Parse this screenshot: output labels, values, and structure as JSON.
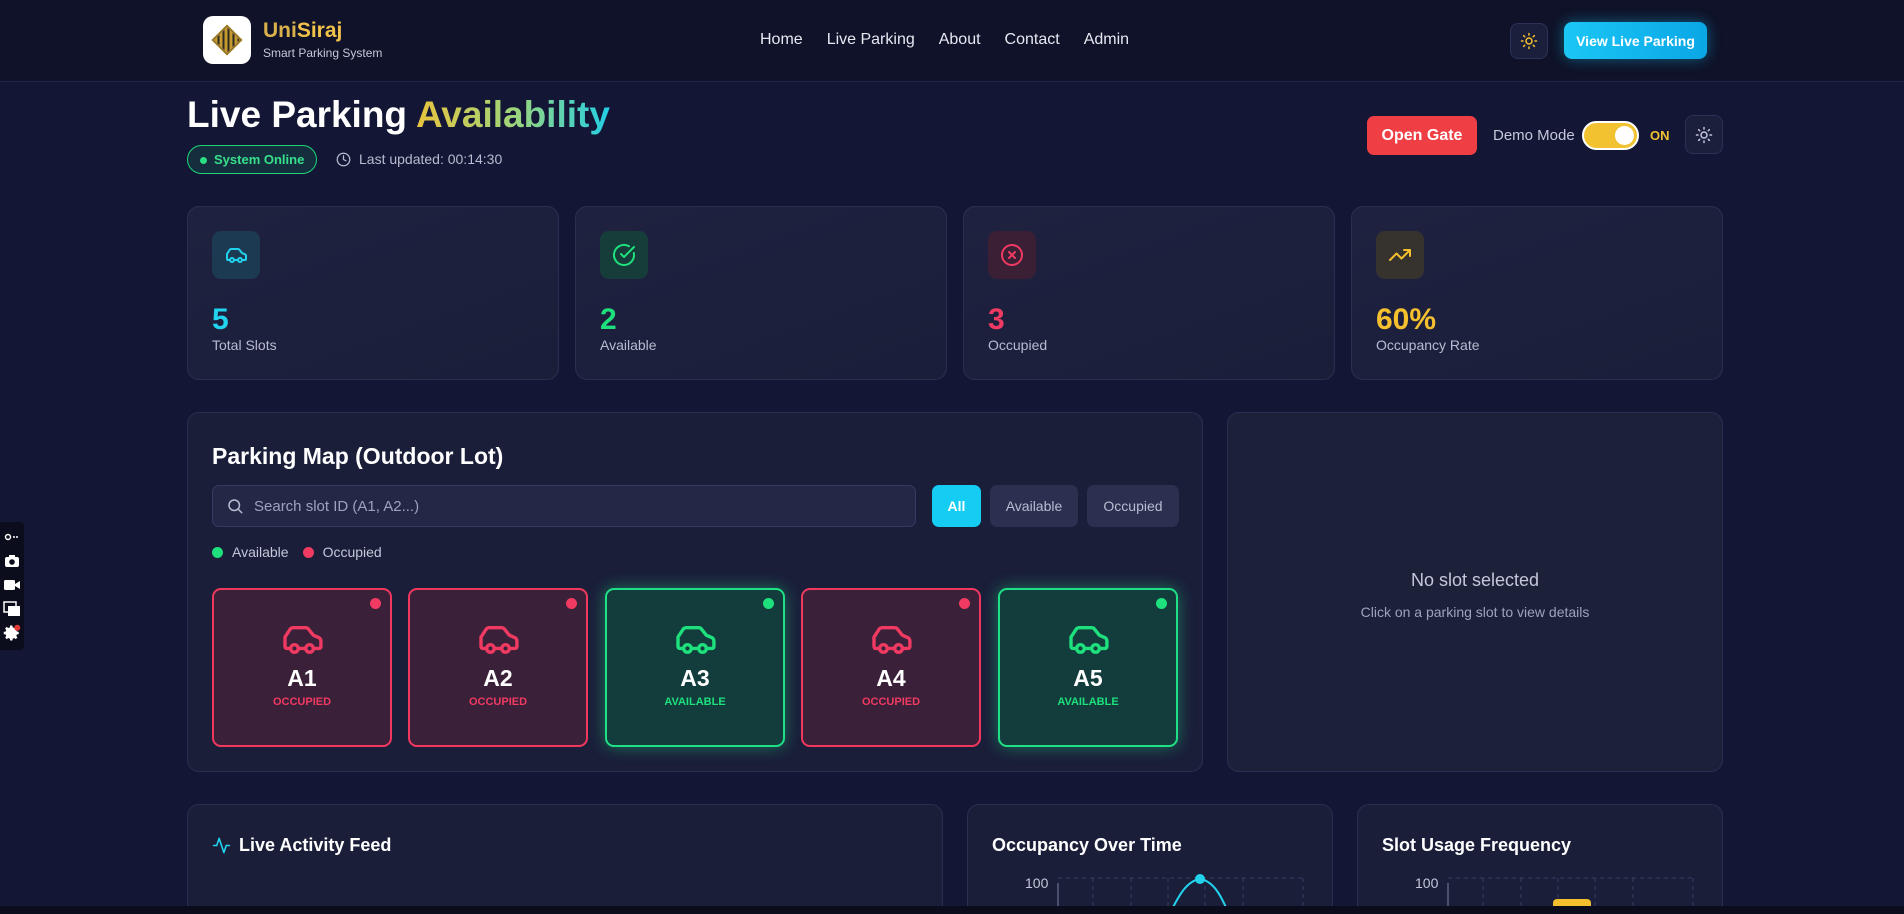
{
  "nav": {
    "brand_name_part1": "Uni",
    "brand_name_part2": "Siraj",
    "brand_subtitle": "Smart Parking System",
    "links": [
      "Home",
      "Live Parking",
      "About",
      "Contact",
      "Admin"
    ],
    "theme_icon": "sun-icon",
    "cta_label": "View Live Parking"
  },
  "header": {
    "title_part1": "Live Parking ",
    "title_part2": "Availability",
    "status_label": "System Online",
    "last_updated": "Last updated: 00:14:30",
    "open_gate_label": "Open Gate",
    "demo_mode_label": "Demo Mode",
    "demo_mode_state": "ON",
    "demo_mode_on": true
  },
  "stats": [
    {
      "value": "5",
      "label": "Total Slots",
      "icon": "car-icon",
      "color": "#22d3ee"
    },
    {
      "value": "2",
      "label": "Available",
      "icon": "check-circle-icon",
      "color": "#1ee07c"
    },
    {
      "value": "3",
      "label": "Occupied",
      "icon": "x-circle-icon",
      "color": "#f03a62"
    },
    {
      "value": "60%",
      "label": "Occupancy Rate",
      "icon": "trending-up-icon",
      "color": "#f4c02e"
    }
  ],
  "parking_map": {
    "title": "Parking Map (Outdoor Lot)",
    "search_placeholder": "Search slot ID (A1, A2...)",
    "filters": [
      "All",
      "Available",
      "Occupied"
    ],
    "active_filter": "All",
    "legend": [
      "Available",
      "Occupied"
    ],
    "slots": [
      {
        "id": "A1",
        "status": "OCCUPIED"
      },
      {
        "id": "A2",
        "status": "OCCUPIED"
      },
      {
        "id": "A3",
        "status": "AVAILABLE"
      },
      {
        "id": "A4",
        "status": "OCCUPIED"
      },
      {
        "id": "A5",
        "status": "AVAILABLE"
      }
    ]
  },
  "details": {
    "title": "No slot selected",
    "subtitle": "Click on a parking slot to view details"
  },
  "activity": {
    "title": "Live Activity Feed"
  },
  "occupancy_chart": {
    "title": "Occupancy Over Time",
    "y_tick_top": "100"
  },
  "usage_chart": {
    "title": "Slot Usage Frequency",
    "y_tick_top": "100"
  },
  "colors": {
    "available": "#1ee07c",
    "occupied": "#f03a62",
    "accent": "#15cdf3",
    "warning": "#f4c02e"
  }
}
